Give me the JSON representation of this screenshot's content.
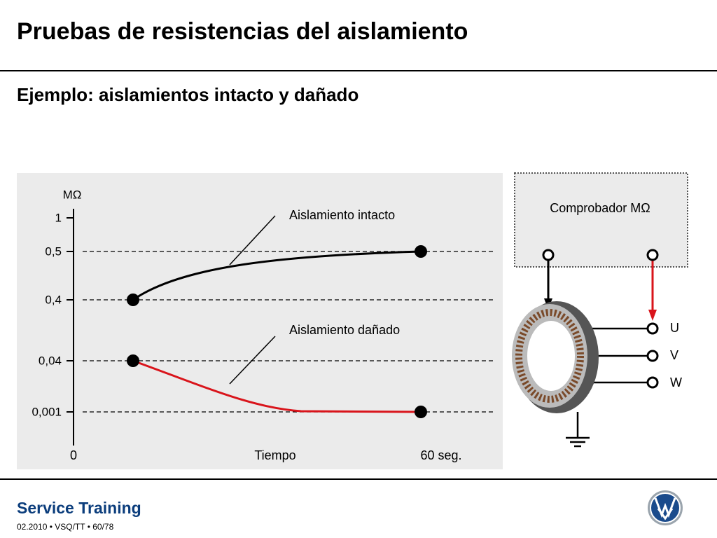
{
  "header": {
    "title": "Pruebas de resistencias del aislamiento",
    "subtitle": "Ejemplo: aislamientos intacto y dañado"
  },
  "graph": {
    "unit": "MΩ",
    "y_labels": [
      "1",
      "0,5",
      "0,4",
      "0,04",
      "0,001"
    ],
    "x_labels": [
      "0",
      "Tiempo",
      "60 seg."
    ],
    "curves": [
      {
        "label": "Aislamiento intacto"
      },
      {
        "label": "Aislamiento dañado"
      }
    ]
  },
  "tester": {
    "label": "Comprobador MΩ",
    "terminals": [
      "U",
      "V",
      "W"
    ]
  },
  "footer": {
    "brand": "Service Training",
    "info": "02.2010 • VSQ/TT • 60/78"
  }
}
